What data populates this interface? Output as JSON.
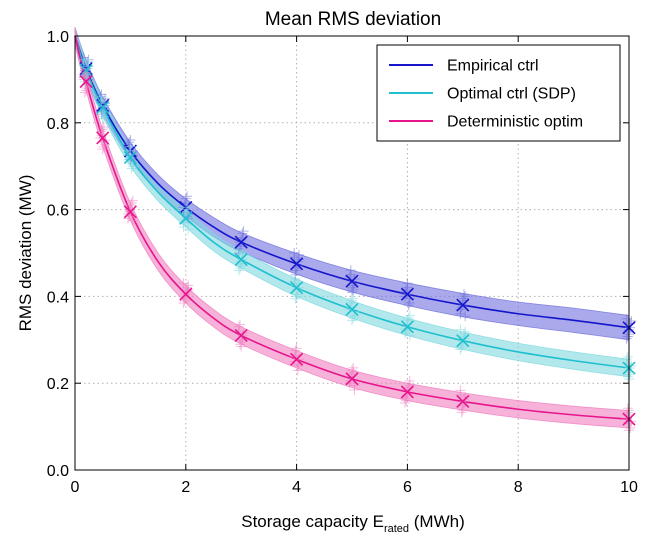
{
  "chart_data": {
    "type": "line",
    "title": "Mean RMS deviation",
    "xlabel": "Storage capacity E",
    "xlabel_sub": "rated",
    "xlabel_suffix": " (MWh)",
    "ylabel": "RMS deviation (MW)",
    "xlim": [
      0,
      10
    ],
    "ylim": [
      0,
      1.0
    ],
    "xticks": [
      0,
      2,
      4,
      6,
      8,
      10
    ],
    "xtick_labels": [
      "0",
      "2",
      "4",
      "6",
      "8",
      "10"
    ],
    "yticks": [
      0.0,
      0.2,
      0.4,
      0.6,
      0.8,
      1.0
    ],
    "ytick_labels": [
      "0.0",
      "0.2",
      "0.4",
      "0.6",
      "0.8",
      "1.0"
    ],
    "grid": true,
    "legend_position": "top-right",
    "series": [
      {
        "name": "Empirical ctrl",
        "color": "#1515cc",
        "band_color": "#7070dd",
        "x": [
          0,
          0.2,
          0.5,
          1,
          1.5,
          2,
          2.5,
          3,
          4,
          5,
          6,
          7,
          8,
          9,
          10
        ],
        "y": [
          1.0,
          0.925,
          0.84,
          0.735,
          0.66,
          0.605,
          0.56,
          0.525,
          0.475,
          0.435,
          0.405,
          0.38,
          0.36,
          0.345,
          0.328
        ],
        "band": [
          0.02,
          0.02,
          0.02,
          0.02,
          0.02,
          0.02,
          0.022,
          0.022,
          0.024,
          0.025,
          0.026,
          0.027,
          0.027,
          0.028,
          0.028
        ],
        "marker_x": [
          0.2,
          0.5,
          1,
          2,
          3,
          4,
          5,
          6,
          7,
          10
        ],
        "marker_y": [
          0.925,
          0.84,
          0.735,
          0.605,
          0.525,
          0.475,
          0.435,
          0.405,
          0.38,
          0.328
        ]
      },
      {
        "name": "Optimal ctrl (SDP)",
        "color": "#1fbfcf",
        "band_color": "#7fd9e0",
        "x": [
          0,
          0.2,
          0.5,
          1,
          1.5,
          2,
          2.5,
          3,
          4,
          5,
          6,
          7,
          8,
          9,
          10
        ],
        "y": [
          1.0,
          0.92,
          0.835,
          0.72,
          0.64,
          0.58,
          0.525,
          0.485,
          0.42,
          0.37,
          0.33,
          0.298,
          0.272,
          0.252,
          0.235
        ],
        "band": [
          0.02,
          0.02,
          0.02,
          0.02,
          0.02,
          0.02,
          0.02,
          0.02,
          0.02,
          0.02,
          0.02,
          0.02,
          0.02,
          0.02,
          0.02
        ],
        "marker_x": [
          0.2,
          0.5,
          1,
          2,
          3,
          4,
          5,
          6,
          7,
          10
        ],
        "marker_y": [
          0.92,
          0.835,
          0.72,
          0.58,
          0.485,
          0.42,
          0.37,
          0.33,
          0.298,
          0.235
        ]
      },
      {
        "name": "Deterministic optim",
        "color": "#e6158c",
        "band_color": "#f07ec0",
        "x": [
          0,
          0.2,
          0.5,
          1,
          1.5,
          2,
          2.5,
          3,
          4,
          5,
          6,
          7,
          8,
          9,
          10
        ],
        "y": [
          1.0,
          0.895,
          0.765,
          0.595,
          0.48,
          0.405,
          0.35,
          0.31,
          0.255,
          0.21,
          0.18,
          0.158,
          0.14,
          0.127,
          0.117
        ],
        "band": [
          0.02,
          0.02,
          0.02,
          0.02,
          0.02,
          0.02,
          0.02,
          0.02,
          0.02,
          0.02,
          0.02,
          0.02,
          0.02,
          0.02,
          0.02
        ],
        "marker_x": [
          0.2,
          0.5,
          1,
          2,
          3,
          4,
          5,
          6,
          7,
          10
        ],
        "marker_y": [
          0.895,
          0.765,
          0.595,
          0.405,
          0.31,
          0.255,
          0.21,
          0.18,
          0.158,
          0.117
        ]
      }
    ]
  }
}
